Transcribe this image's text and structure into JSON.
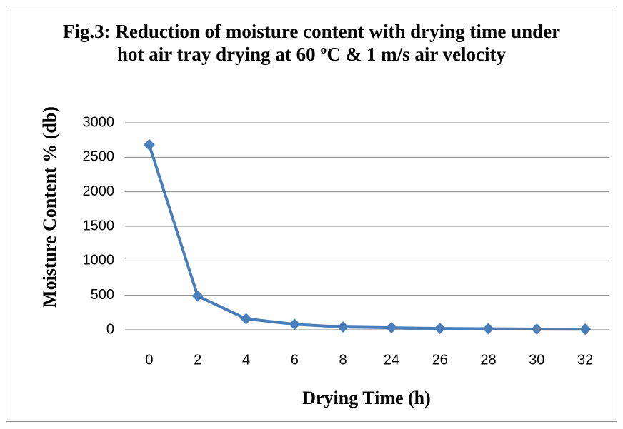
{
  "chart_data": {
    "type": "line",
    "title": "Fig.3: Reduction of moisture content with drying time under hot air tray drying at 60 ºC & 1 m/s air velocity",
    "x_label": "Drying Time (h)",
    "y_label": "Moisture Content % (db)",
    "categories": [
      "0",
      "2",
      "4",
      "6",
      "8",
      "24",
      "26",
      "28",
      "30",
      "32"
    ],
    "series": [
      {
        "name": "Moisture Content",
        "color": "#4a7ebb",
        "values": [
          2680,
          490,
          160,
          80,
          40,
          30,
          20,
          15,
          10,
          8
        ]
      }
    ],
    "ylim": [
      0,
      3000
    ],
    "yticks": [
      0,
      500,
      1000,
      1500,
      2000,
      2500,
      3000
    ],
    "grid": true,
    "legend": false
  }
}
